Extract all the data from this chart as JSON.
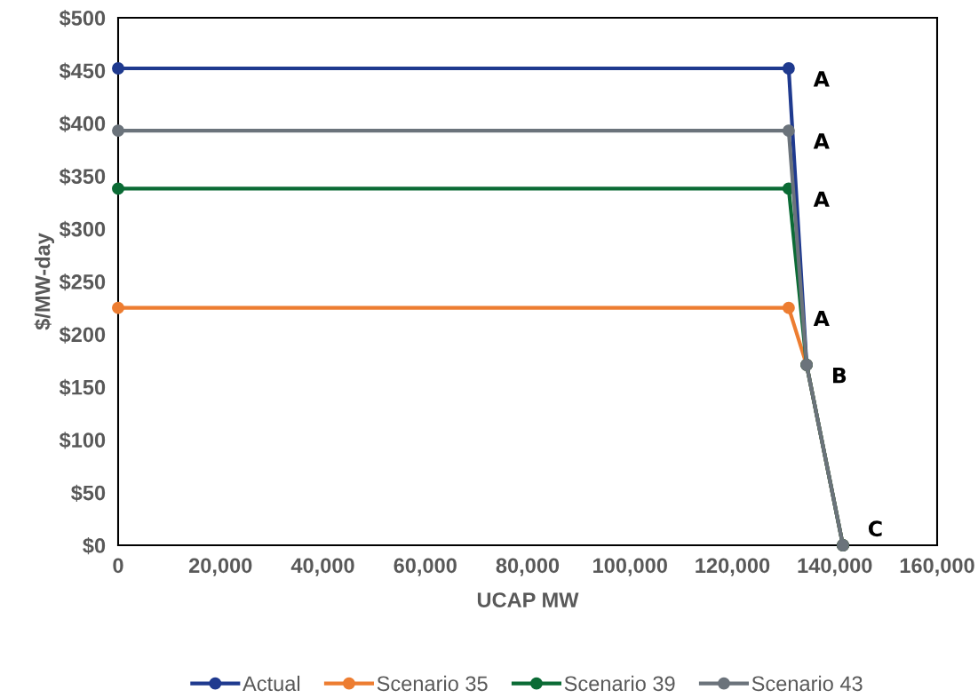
{
  "chart_data": {
    "type": "line",
    "xlabel": "UCAP MW",
    "ylabel": "$/MW-day",
    "xlim": [
      0,
      160000
    ],
    "ylim": [
      0,
      500
    ],
    "xticks": [
      0,
      {
        "value": 20000,
        "label": "20,000"
      },
      {
        "value": 40000,
        "label": "40,000"
      },
      {
        "value": 60000,
        "label": "60,000"
      },
      {
        "value": 80000,
        "label": "80,000"
      },
      {
        "value": 100000,
        "label": "100,000"
      },
      {
        "value": 120000,
        "label": "120,000"
      },
      {
        "value": 140000,
        "label": "140,000"
      },
      {
        "value": 160000,
        "label": "160,000"
      }
    ],
    "yticks": [
      {
        "value": 0,
        "label": "$0"
      },
      {
        "value": 50,
        "label": "$50"
      },
      {
        "value": 100,
        "label": "$100"
      },
      {
        "value": 150,
        "label": "$150"
      },
      {
        "value": 200,
        "label": "$200"
      },
      {
        "value": 250,
        "label": "$250"
      },
      {
        "value": 300,
        "label": "$300"
      },
      {
        "value": 350,
        "label": "$350"
      },
      {
        "value": 400,
        "label": "$400"
      },
      {
        "value": 450,
        "label": "$450"
      },
      {
        "value": 500,
        "label": "$500"
      }
    ],
    "grid": false,
    "legend": "bottom",
    "marker": "circle",
    "line_style": "solid",
    "series": [
      {
        "name": "Actual",
        "color": "#1f3a8f",
        "x": [
          0,
          131000,
          134500,
          141600
        ],
        "values": [
          452,
          452,
          171,
          0
        ]
      },
      {
        "name": "Scenario 35",
        "color": "#ed7d31",
        "x": [
          0,
          131000,
          134500,
          141600
        ],
        "values": [
          225,
          225,
          171,
          0
        ]
      },
      {
        "name": "Scenario 39",
        "color": "#0b6b35",
        "x": [
          0,
          131000,
          134500,
          141600
        ],
        "values": [
          338,
          338,
          171,
          0
        ]
      },
      {
        "name": "Scenario 43",
        "color": "#6b737b",
        "x": [
          0,
          131000,
          134500,
          141600
        ],
        "values": [
          393,
          393,
          171,
          0
        ]
      }
    ],
    "annotations": [
      {
        "text": "A",
        "x": 131000,
        "y": 452
      },
      {
        "text": "A",
        "x": 131000,
        "y": 393
      },
      {
        "text": "A",
        "x": 131000,
        "y": 338
      },
      {
        "text": "A",
        "x": 131000,
        "y": 225
      },
      {
        "text": "B",
        "x": 134500,
        "y": 171
      },
      {
        "text": "C",
        "x": 141600,
        "y": 0
      }
    ]
  }
}
